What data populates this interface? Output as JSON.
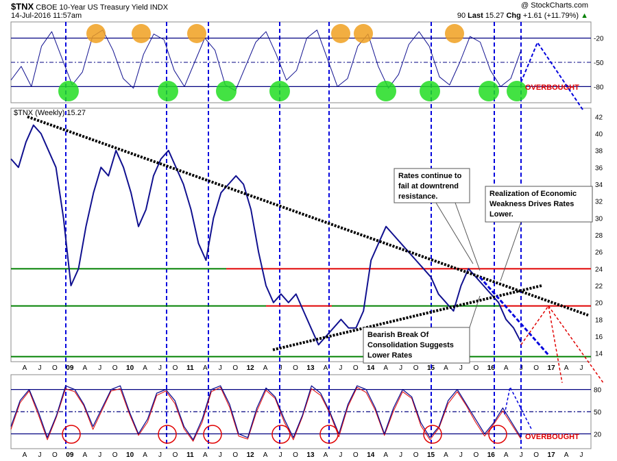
{
  "header": {
    "symbol": "$TNX",
    "name": "CBOE 10-Year US Treasury Yield INDX",
    "date": "14-Jul-2016 11:57am",
    "watermark": "@ StockCharts.com",
    "quote_prefix": "90",
    "last_label": "Last",
    "last_value": "15.27",
    "chg_label": "Chg",
    "chg_value": "+1.61 (+11.79%)",
    "chg_arrow": "▲"
  },
  "colors": {
    "price_line": "#10108f",
    "grid": "#000080",
    "support_green": "#008000",
    "resistance_red": "#e00000",
    "vertical_marker": "#0000dd",
    "overbought_text": "#e00000",
    "orange_marker": "#f0a020",
    "green_marker": "#22dd22",
    "circle_red": "#e00000"
  },
  "chart_data": [
    {
      "type": "line",
      "panel": "top-oscillator",
      "y_ticks": [
        -20,
        -50,
        -80
      ],
      "ylim": [
        -100,
        0
      ],
      "annotations": [
        "OVERBOUGHT"
      ],
      "series": [
        {
          "values": [
            -72,
            -55,
            -80,
            -30,
            -12,
            -45,
            -78,
            -62,
            -18,
            -10,
            -35,
            -70,
            -82,
            -40,
            -15,
            -22,
            -60,
            -80,
            -50,
            -20,
            -35,
            -78,
            -85,
            -55,
            -25,
            -12,
            -40,
            -72,
            -60,
            -20,
            -10,
            -45,
            -80,
            -70,
            -30,
            -15,
            -55,
            -82,
            -65,
            -28,
            -12,
            -30,
            -68,
            -78,
            -50,
            -18,
            -25,
            -60,
            -80,
            -70,
            -35
          ]
        }
      ]
    },
    {
      "type": "line",
      "panel": "price",
      "legend": "$TNX (Weekly) 15.27",
      "y_ticks": [
        14,
        16,
        18,
        20,
        22,
        24,
        26,
        28,
        30,
        32,
        34,
        36,
        38,
        40,
        42
      ],
      "ylim": [
        13,
        43
      ],
      "x_ticks": [
        "A",
        "J",
        "O",
        "09",
        "A",
        "J",
        "O",
        "10",
        "A",
        "J",
        "O",
        "11",
        "A",
        "J",
        "O",
        "12",
        "A",
        "J",
        "O",
        "13",
        "A",
        "J",
        "O",
        "14",
        "A",
        "J",
        "O",
        "15",
        "A",
        "J",
        "O",
        "16",
        "A",
        "J",
        "O",
        "17",
        "A",
        "J"
      ],
      "horizontal_levels": [
        {
          "value": 24,
          "segments": [
            "green",
            "red"
          ]
        },
        {
          "value": 19.6,
          "segments": [
            "green",
            "red",
            "green",
            "red"
          ]
        },
        {
          "value": 13.6,
          "segments": [
            "green"
          ]
        }
      ],
      "annotations": [
        "Rates continue to fail at downtrend resistance.",
        "Realization of Economic Weakness Drives Rates Lower.",
        "Bearish Break Of Consolidation Suggests Lower Rates"
      ],
      "series": [
        {
          "name": "$TNX (Weekly)",
          "values": [
            37,
            36,
            39,
            41,
            40,
            38,
            36,
            30,
            22,
            24,
            29,
            33,
            36,
            35,
            38,
            36,
            33,
            29,
            31,
            35,
            37,
            38,
            36,
            34,
            31,
            27,
            25,
            30,
            33,
            34,
            35,
            34,
            31,
            26,
            22,
            20,
            21,
            20,
            21,
            19,
            17,
            15,
            16,
            17,
            18,
            17,
            17,
            19,
            25,
            27,
            29,
            28,
            27,
            26,
            25,
            24,
            23,
            21,
            20,
            19,
            22,
            24,
            23,
            22,
            21,
            20,
            18,
            17,
            15.3
          ]
        }
      ]
    },
    {
      "type": "line",
      "panel": "bottom-oscillator",
      "y_ticks": [
        20,
        50,
        80
      ],
      "ylim": [
        0,
        100
      ],
      "annotations": [
        "OVERBOUGHT"
      ],
      "series": [
        {
          "values": [
            30,
            65,
            80,
            50,
            15,
            45,
            85,
            80,
            60,
            30,
            55,
            80,
            85,
            50,
            20,
            40,
            75,
            80,
            65,
            30,
            12,
            40,
            80,
            85,
            60,
            20,
            15,
            55,
            82,
            70,
            40,
            15,
            45,
            85,
            75,
            50,
            20,
            60,
            85,
            80,
            55,
            20,
            55,
            80,
            70,
            35,
            15,
            30,
            65,
            80,
            60,
            40,
            20,
            35,
            55,
            35,
            15
          ]
        }
      ]
    }
  ],
  "x_axis_labels": [
    "A",
    "J",
    "O",
    "09",
    "A",
    "J",
    "O",
    "10",
    "A",
    "J",
    "O",
    "11",
    "A",
    "J",
    "O",
    "12",
    "A",
    "J",
    "O",
    "13",
    "A",
    "J",
    "O",
    "14",
    "A",
    "J",
    "O",
    "15",
    "A",
    "J",
    "O",
    "16",
    "A",
    "J",
    "O",
    "17",
    "A",
    "J"
  ]
}
